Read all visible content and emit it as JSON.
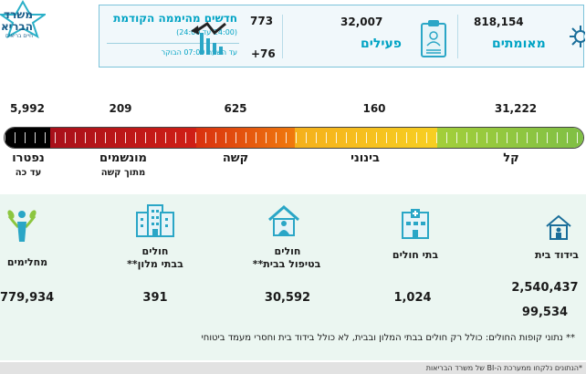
{
  "logo": {
    "text_line1": "משרד",
    "text_line2": "הבריא",
    "small": "חיים בריאים"
  },
  "header": {
    "confirmed": {
      "value": "818,154",
      "label": "מאומתים"
    },
    "active": {
      "value": "32,007",
      "label": "פעילים"
    },
    "new_cases": {
      "value": "773",
      "title": "חדשים מהיממה הקודמת",
      "time_range": "(24:00 עד 24:00)",
      "today_value": "+76",
      "today_note": "עד השעה 07:00 הבוקר"
    }
  },
  "severity": [
    {
      "key": "mild",
      "value": "31,222",
      "label": "קל",
      "sub": ""
    },
    {
      "key": "moderate",
      "value": "160",
      "label": "בינוני",
      "sub": ""
    },
    {
      "key": "severe",
      "value": "625",
      "label": "קשה",
      "sub": ""
    },
    {
      "key": "ventilated",
      "value": "209",
      "label": "מונשמים",
      "sub": "מתוך קשה"
    },
    {
      "key": "deceased",
      "value": "5,992",
      "label": "נפטרו",
      "sub": "עד כה"
    }
  ],
  "categories": [
    {
      "key": "home-isolation",
      "label": "בידוד בית",
      "value": "2,540,437",
      "value2": "99,534"
    },
    {
      "key": "hospitals",
      "label": "בתי חולים",
      "value": "1,024"
    },
    {
      "key": "home-care",
      "label_line1": "חולים",
      "label_line2": "בטיפול בבית**",
      "value": "30,592"
    },
    {
      "key": "hotels",
      "label_line1": "חולים",
      "label_line2": "בבתי מלון**",
      "value": "391"
    },
    {
      "key": "recovered",
      "label": "מחלימים",
      "value": "779,934"
    }
  ],
  "footnote": "** נתוני קופות החולים: כולל רק חולים בבתי המלון ובבית, לא כולל בידוד בית וחסרי מעמד ביטוחי",
  "bottom_note": "*הנתונים נלקחו ממערכת ה-BI של משרד הבריאות",
  "colors": {
    "accent": "#00a3c4",
    "mild": "#8cc63f",
    "moderate": "#f7c51c",
    "severe": "#e03a12",
    "critical": "#b8121b",
    "deceased": "#000000"
  }
}
